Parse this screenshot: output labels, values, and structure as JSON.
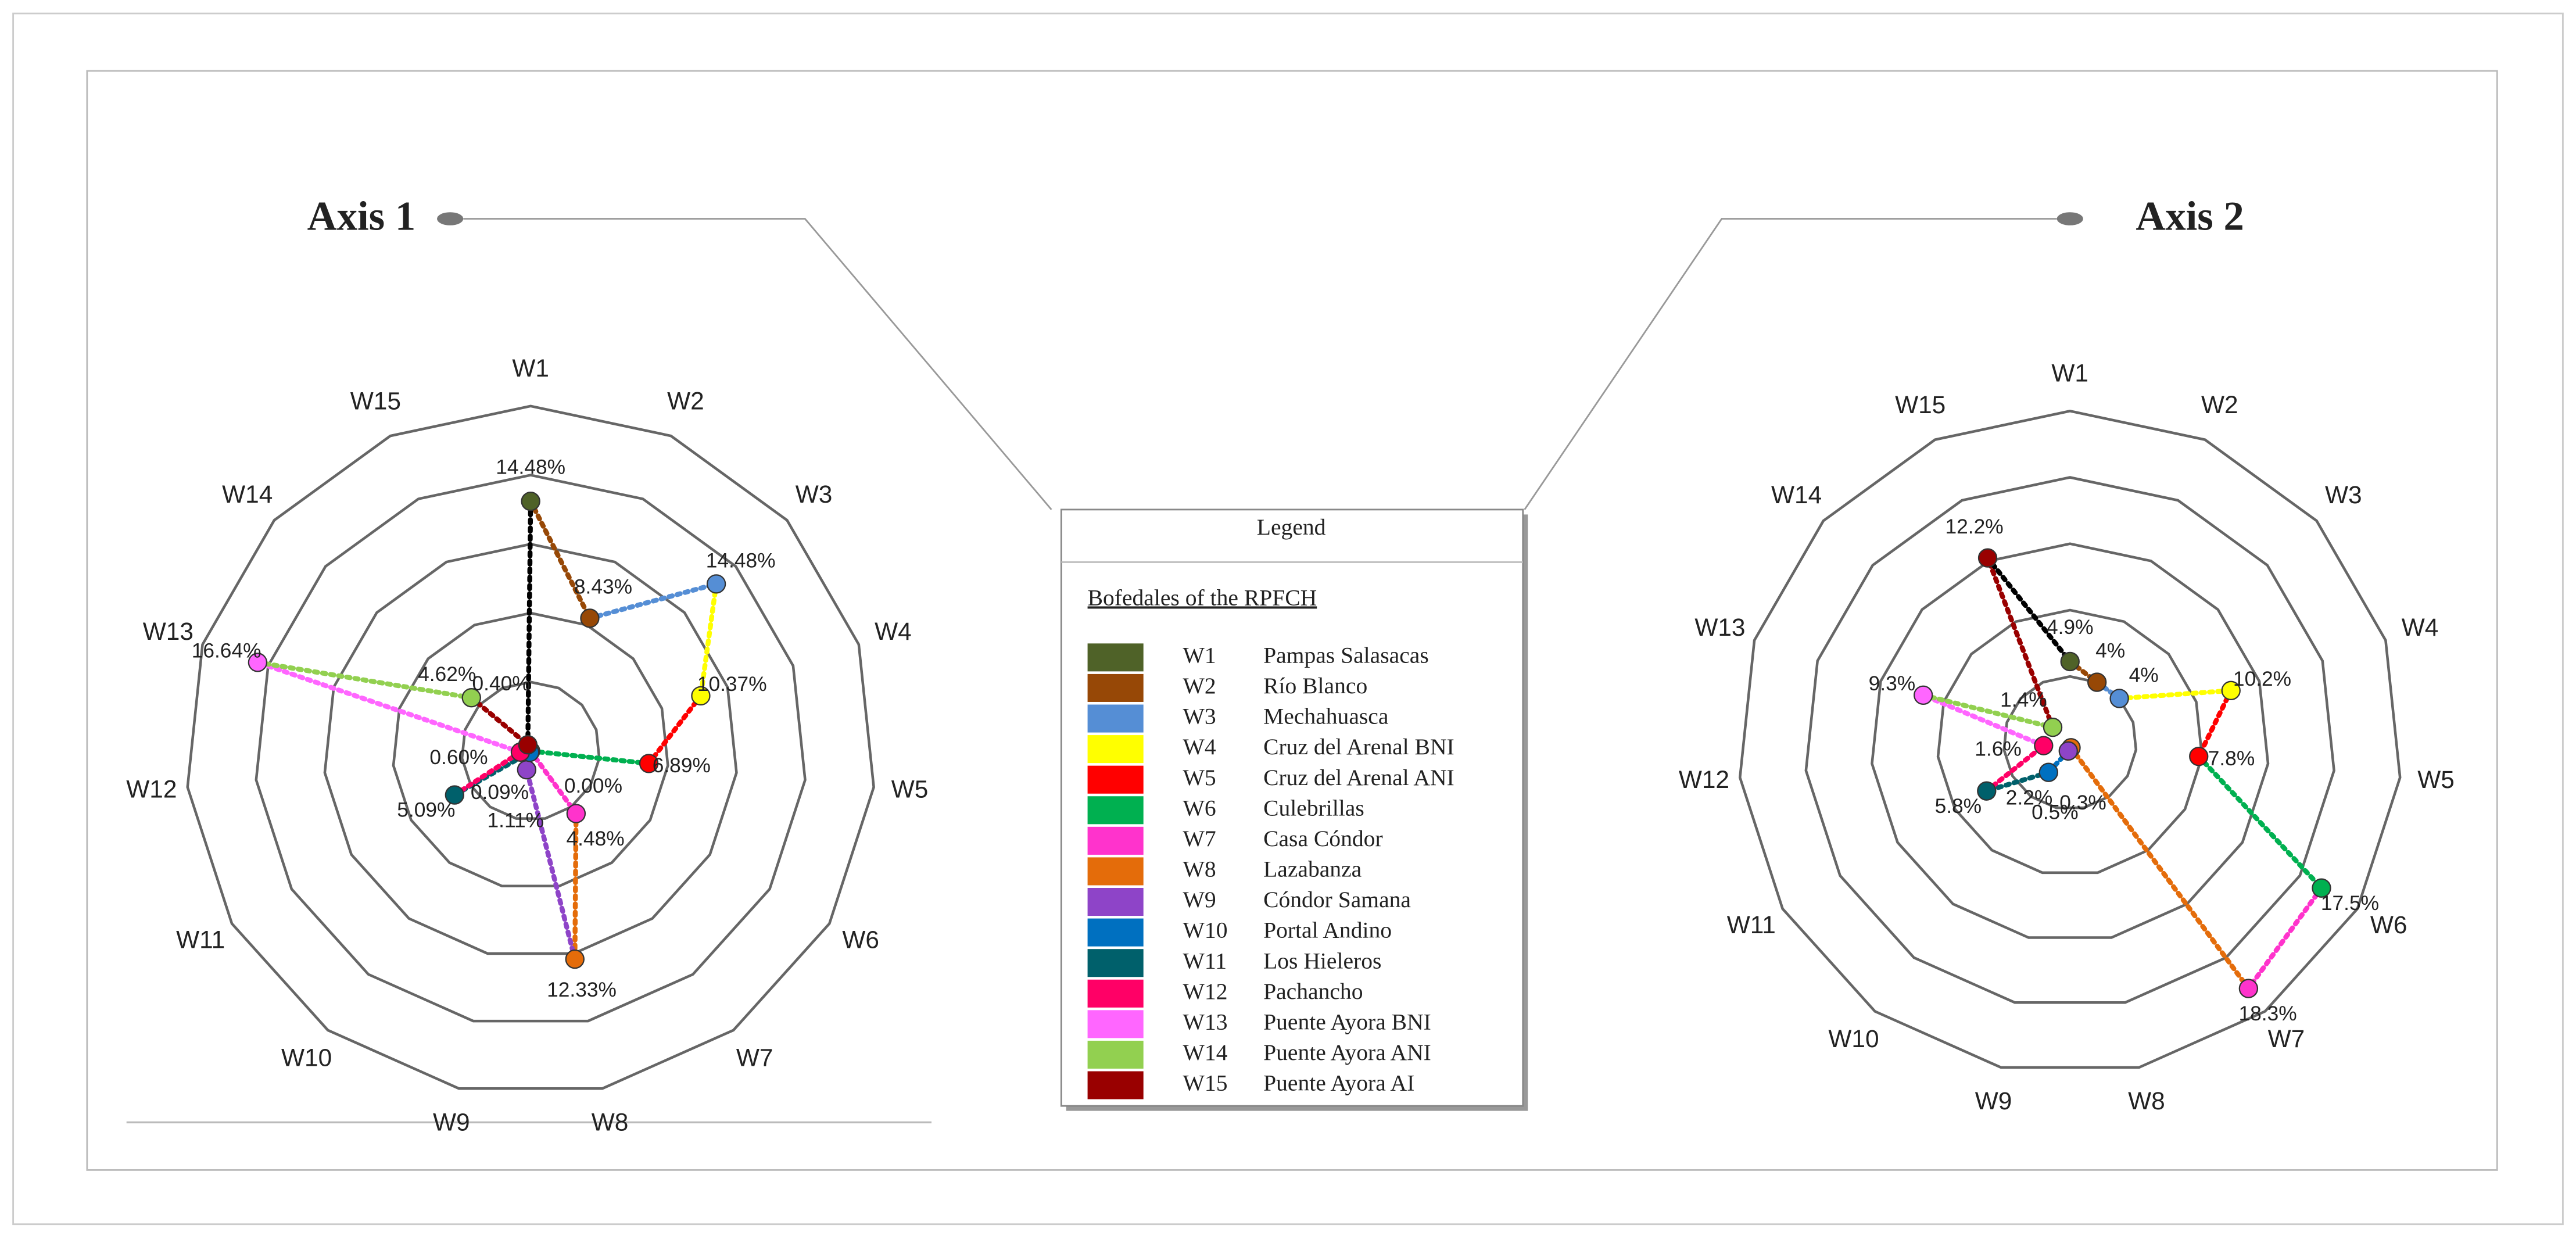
{
  "chart_data": [
    {
      "type": "radar",
      "title": "Axis 1",
      "categories": [
        "W1",
        "W2",
        "W3",
        "W4",
        "W5",
        "W6",
        "W7",
        "W8",
        "W9",
        "W10",
        "W11",
        "W12",
        "W13",
        "W14",
        "W15"
      ],
      "values": [
        14.48,
        8.43,
        14.48,
        10.37,
        6.89,
        0,
        4.48,
        12.33,
        1.11,
        0.09,
        5.09,
        0.6,
        16.64,
        4.62,
        0.4
      ],
      "value_labels": [
        "14.48%",
        "8.43%",
        "14.48%",
        "10.37%",
        "6.89%",
        "0.00%",
        "4.48%",
        "12.33%",
        "1.11%",
        "0.09%",
        "5.09%",
        "0.60%",
        "16.64%",
        "4.62%",
        "0.40%"
      ],
      "rlim": [
        0,
        20
      ],
      "rticks": [
        4,
        8,
        12,
        16,
        20
      ]
    },
    {
      "type": "radar",
      "title": "Axis 2",
      "categories": [
        "W1",
        "W2",
        "W3",
        "W4",
        "W5",
        "W6",
        "W7",
        "W8",
        "W9",
        "W10",
        "W11",
        "W12",
        "W13",
        "W14",
        "W15"
      ],
      "values": [
        4.9,
        4,
        4,
        10.2,
        7.8,
        17.5,
        18.3,
        0.3,
        0.5,
        2.2,
        5.8,
        1.6,
        9.3,
        1.4,
        12.2
      ],
      "value_labels": [
        "4.9%",
        "4%",
        "4%",
        "10.2%",
        "7.8%",
        "17.5%",
        "18.3%",
        "0.3%",
        "0.5%",
        "2.2%",
        "5.8%",
        "1.6%",
        "9.3%",
        "1.4%",
        "12.2%"
      ],
      "rlim": [
        0,
        20
      ],
      "rticks": [
        4,
        8,
        12,
        16,
        20
      ]
    }
  ],
  "legend": {
    "title": "Legend",
    "subtitle": "Bofedales of the RPFCH",
    "items": [
      {
        "code": "W1",
        "name": "Pampas Salasacas",
        "color": "#4f6228"
      },
      {
        "code": "W2",
        "name": "Río Blanco",
        "color": "#974806"
      },
      {
        "code": "W3",
        "name": "Mechahuasca",
        "color": "#558ed5"
      },
      {
        "code": "W4",
        "name": "Cruz del Arenal BNI",
        "color": "#ffff00"
      },
      {
        "code": "W5",
        "name": "Cruz del Arenal ANI",
        "color": "#ff0000"
      },
      {
        "code": "W6",
        "name": "Culebrillas",
        "color": "#00b050"
      },
      {
        "code": "W7",
        "name": "Casa Cóndor",
        "color": "#ff33cc"
      },
      {
        "code": "W8",
        "name": "Lazabanza",
        "color": "#e46c0a"
      },
      {
        "code": "W9",
        "name": "Cóndor Samana",
        "color": "#8e44c8"
      },
      {
        "code": "W10",
        "name": "Portal Andino",
        "color": "#0070c0"
      },
      {
        "code": "W11",
        "name": "Los Hieleros",
        "color": "#00606b"
      },
      {
        "code": "W12",
        "name": "Pachancho",
        "color": "#ff0066"
      },
      {
        "code": "W13",
        "name": "Puente Ayora BNI",
        "color": "#ff66ff"
      },
      {
        "code": "W14",
        "name": "Puente Ayora ANI",
        "color": "#92d050"
      },
      {
        "code": "W15",
        "name": "Puente Ayora AI",
        "color": "#990000"
      }
    ]
  }
}
